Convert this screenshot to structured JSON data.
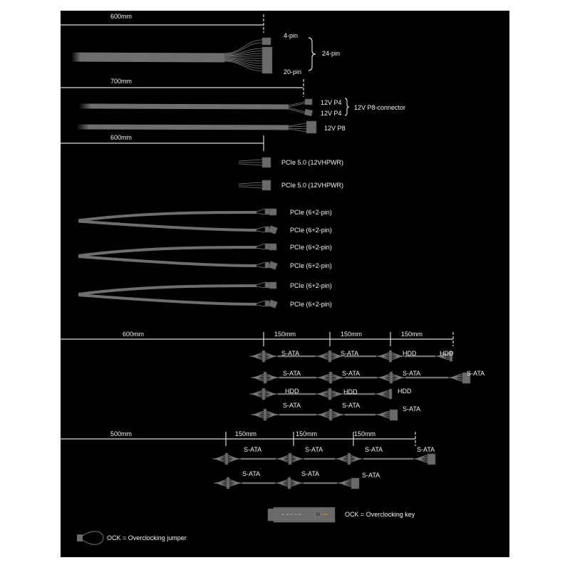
{
  "colors": {
    "background": "#000000",
    "cable": "#6e6e6e",
    "text": "#f2f2f2"
  },
  "atx": {
    "length": "600mm",
    "top": "4-pin",
    "bottom": "20-pin",
    "group": "24-pin"
  },
  "eps": {
    "length": "700mm",
    "p4_a": "12V P4",
    "p4_b": "12V P4",
    "group": "12V P8-connector",
    "p8": "12V P8"
  },
  "pcie": {
    "length": "600mm",
    "pcie5": [
      "PCIe 5.0 (12VHPWR)",
      "PCIe 5.0 (12VHPWR)"
    ],
    "pcie62": [
      "PCIe (6+2-pin)",
      "PCIe (6+2-pin)",
      "PCIe (6+2-pin)",
      "PCIe (6+2-pin)",
      "PCIe (6+2-pin)",
      "PCIe (6+2-pin)"
    ]
  },
  "periph1": {
    "lengths": [
      "600mm",
      "150mm",
      "150mm",
      "150mm"
    ],
    "rows": [
      [
        "S-ATA",
        "S-ATA",
        "HDD",
        "HDD"
      ],
      [
        "S-ATA",
        "S-ATA",
        "S-ATA",
        "S-ATA"
      ],
      [
        "HDD",
        "HDD",
        "HDD"
      ],
      [
        "S-ATA",
        "S-ATA",
        "S-ATA"
      ]
    ]
  },
  "periph2": {
    "lengths": [
      "500mm",
      "150mm",
      "150mm",
      "150mm"
    ],
    "rows": [
      [
        "S-ATA",
        "S-ATA",
        "S-ATA",
        "S-ATA"
      ],
      [
        "S-ATA",
        "S-ATA",
        "S-ATA"
      ]
    ]
  },
  "ock": {
    "key": "OCK = Overclocking key",
    "jumper": "OCK = Overclocking jumper"
  }
}
